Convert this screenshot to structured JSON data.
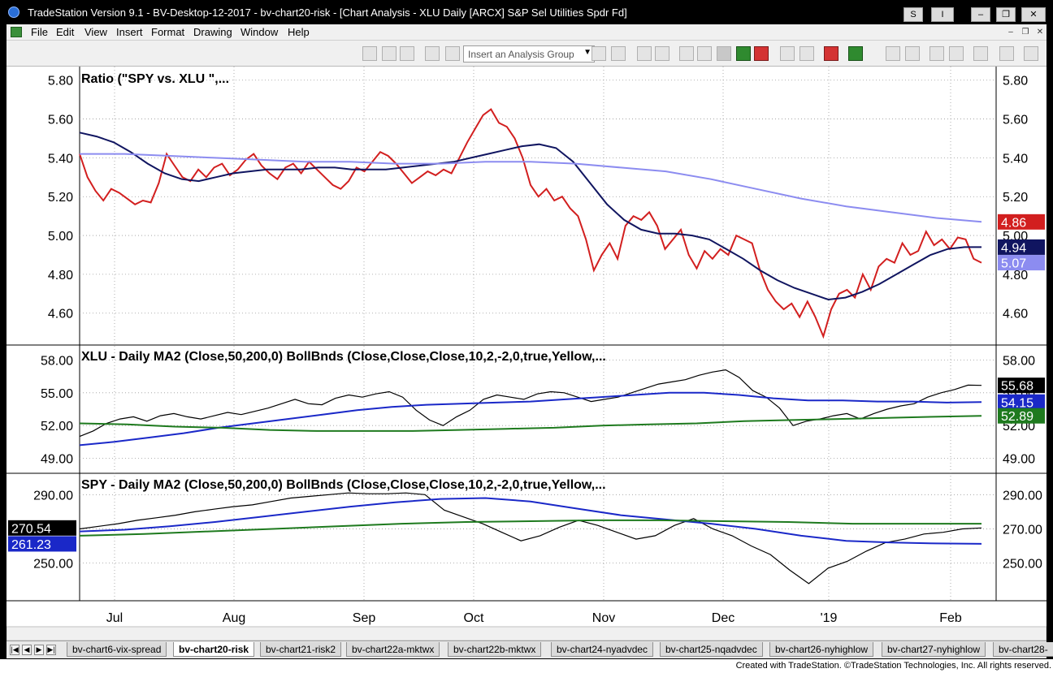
{
  "window": {
    "title": "TradeStation Version 9.1 - BV-Desktop-12-2017 - bv-chart20-risk - [Chart Analysis - XLU Daily [ARCX] S&P Sel Utilities Spdr Fd]",
    "buttons": [
      "S",
      "I",
      "–",
      "❐",
      "✕"
    ]
  },
  "menu": {
    "items": [
      "File",
      "Edit",
      "View",
      "Insert",
      "Format",
      "Drawing",
      "Window",
      "Help"
    ],
    "mdi_buttons": [
      "–",
      "❐",
      "✕"
    ]
  },
  "toolbar": {
    "analysis_group_placeholder": "Insert an Analysis Group"
  },
  "colors": {
    "ratio": "#d21f1f",
    "ma50": "#101560",
    "ma200": "#8c8cf0",
    "xlu_ma50": "#1a28c8",
    "xlu_ma200": "#1e7a1e",
    "boll_upper": "#e02020",
    "boll_lower": "#20b020"
  },
  "chart_data": [
    {
      "type": "line",
      "title": "Ratio (\"SPY vs. XLU                  \",...",
      "y_ticks": [
        "5.80",
        "5.60",
        "5.40",
        "5.20",
        "5.00",
        "4.80",
        "4.60"
      ],
      "ylim": [
        4.44,
        5.87
      ],
      "series": [
        {
          "name": "Ratio",
          "color": "#d21f1f",
          "values": [
            5.42,
            5.3,
            5.23,
            5.18,
            5.24,
            5.22,
            5.19,
            5.16,
            5.18,
            5.17,
            5.27,
            5.42,
            5.36,
            5.3,
            5.28,
            5.34,
            5.3,
            5.35,
            5.37,
            5.31,
            5.34,
            5.39,
            5.42,
            5.36,
            5.32,
            5.29,
            5.35,
            5.37,
            5.32,
            5.38,
            5.34,
            5.3,
            5.26,
            5.24,
            5.28,
            5.35,
            5.33,
            5.38,
            5.43,
            5.41,
            5.37,
            5.32,
            5.27,
            5.3,
            5.33,
            5.31,
            5.34,
            5.32,
            5.4,
            5.48,
            5.55,
            5.62,
            5.65,
            5.58,
            5.56,
            5.5,
            5.4,
            5.26,
            5.2,
            5.24,
            5.18,
            5.2,
            5.14,
            5.1,
            4.98,
            4.82,
            4.9,
            4.96,
            4.88,
            5.05,
            5.1,
            5.08,
            5.12,
            5.05,
            4.93,
            4.98,
            5.03,
            4.9,
            4.83,
            4.92,
            4.88,
            4.93,
            4.9,
            5.0,
            4.98,
            4.96,
            4.82,
            4.72,
            4.66,
            4.62,
            4.65,
            4.58,
            4.66,
            4.58,
            4.48,
            4.62,
            4.7,
            4.72,
            4.68,
            4.8,
            4.72,
            4.84,
            4.88,
            4.86,
            4.96,
            4.9,
            4.92,
            5.02,
            4.95,
            4.98,
            4.93,
            4.99,
            4.98,
            4.88,
            4.86
          ]
        },
        {
          "name": "MA 50",
          "color": "#101560",
          "values": [
            5.53,
            5.51,
            5.48,
            5.43,
            5.37,
            5.32,
            5.29,
            5.28,
            5.3,
            5.32,
            5.33,
            5.34,
            5.34,
            5.34,
            5.35,
            5.35,
            5.34,
            5.34,
            5.34,
            5.35,
            5.36,
            5.37,
            5.38,
            5.4,
            5.42,
            5.44,
            5.46,
            5.47,
            5.45,
            5.38,
            5.27,
            5.16,
            5.08,
            5.03,
            5.01,
            5.01,
            5.0,
            4.98,
            4.93,
            4.88,
            4.82,
            4.77,
            4.73,
            4.7,
            4.67,
            4.68,
            4.71,
            4.75,
            4.8,
            4.85,
            4.9,
            4.93,
            4.94,
            4.94
          ]
        },
        {
          "name": "MA 200",
          "color": "#8c8cf0",
          "values": [
            5.42,
            5.42,
            5.41,
            5.4,
            5.39,
            5.38,
            5.38,
            5.37,
            5.37,
            5.38,
            5.38,
            5.37,
            5.35,
            5.33,
            5.29,
            5.24,
            5.19,
            5.15,
            5.12,
            5.09,
            5.07
          ]
        }
      ],
      "last_values": [
        {
          "label": "5.07",
          "color": "#8c8cf0"
        },
        {
          "label": "4.94",
          "color": "#101560"
        },
        {
          "label": "4.86",
          "color": "#d21f1f"
        }
      ]
    },
    {
      "type": "line",
      "title": "XLU - Daily  MA2 (Close,50,200,0)   BollBnds (Close,Close,Close,10,2,-2,0,true,Yellow,...",
      "y_ticks": [
        "58.00",
        "55.00",
        "52.00",
        "49.00"
      ],
      "ylim": [
        47.7,
        59.3
      ],
      "series": [
        {
          "name": "Close",
          "color": "#000000",
          "values": [
            51.0,
            51.5,
            52.2,
            52.6,
            52.8,
            52.4,
            52.9,
            53.1,
            52.8,
            52.6,
            52.9,
            53.2,
            53.0,
            53.3,
            53.6,
            54.0,
            54.4,
            54.0,
            53.9,
            54.5,
            54.8,
            54.6,
            54.9,
            55.1,
            54.6,
            53.4,
            52.5,
            52.0,
            52.8,
            53.4,
            54.4,
            54.8,
            54.6,
            54.4,
            54.9,
            55.1,
            55.0,
            54.6,
            54.2,
            54.4,
            54.6,
            55.0,
            55.4,
            55.8,
            56.0,
            56.2,
            56.6,
            56.9,
            57.1,
            56.4,
            55.2,
            54.6,
            53.6,
            52.0,
            52.4,
            52.6,
            52.9,
            53.1,
            52.6,
            53.1,
            53.5,
            53.8,
            54.0,
            54.6,
            55.0,
            55.3,
            55.7,
            55.68
          ]
        },
        {
          "name": "MA 50",
          "color": "#1a28c8",
          "values": [
            50.2,
            50.5,
            50.9,
            51.3,
            51.8,
            52.2,
            52.6,
            53.0,
            53.4,
            53.7,
            53.9,
            54.0,
            54.1,
            54.2,
            54.4,
            54.6,
            54.8,
            55.0,
            55.0,
            54.8,
            54.5,
            54.3,
            54.3,
            54.2,
            54.2,
            54.1,
            54.15
          ]
        },
        {
          "name": "MA 200",
          "color": "#1e7a1e",
          "values": [
            52.2,
            52.1,
            51.9,
            51.8,
            51.6,
            51.5,
            51.5,
            51.5,
            51.6,
            51.7,
            51.8,
            52.0,
            52.1,
            52.2,
            52.4,
            52.5,
            52.6,
            52.7,
            52.8,
            52.89
          ]
        }
      ],
      "last_values": [
        {
          "label": "55.68",
          "color": "#000000"
        },
        {
          "label": "54.15",
          "color": "#1a28c8"
        },
        {
          "label": "52.89",
          "color": "#1e7a1e"
        }
      ]
    },
    {
      "type": "line",
      "title": "SPY - Daily  MA2 (Close,50,200,0)   BollBnds (Close,Close,Close,10,2,-2,0,true,Yellow,...",
      "y_ticks": [
        "290.00",
        "270.00",
        "250.00"
      ],
      "ylim": [
        228.0,
        302.0
      ],
      "series": [
        {
          "name": "Close",
          "color": "#000000",
          "values": [
            270.0,
            271.5,
            273.0,
            275.0,
            276.5,
            278.0,
            280.0,
            281.5,
            283.0,
            284.0,
            286.0,
            288.0,
            289.0,
            290.0,
            291.0,
            290.5,
            290.5,
            291.0,
            290.0,
            281.0,
            277.0,
            273.0,
            268.0,
            263.0,
            266.0,
            271.0,
            275.0,
            272.0,
            268.0,
            264.0,
            266.0,
            272.0,
            276.0,
            270.0,
            266.0,
            260.0,
            255.0,
            246.0,
            238.0,
            247.0,
            251.0,
            257.0,
            262.0,
            264.0,
            267.0,
            268.0,
            270.0,
            270.54
          ]
        },
        {
          "name": "MA 50",
          "color": "#1a28c8",
          "values": [
            268.5,
            269.5,
            271.5,
            274.0,
            277.0,
            280.0,
            283.0,
            285.5,
            287.5,
            288.0,
            286.0,
            282.0,
            278.0,
            275.5,
            273.0,
            270.0,
            266.0,
            263.0,
            262.0,
            261.5,
            261.23
          ]
        },
        {
          "name": "MA 200",
          "color": "#1e7a1e",
          "values": [
            266.0,
            267.0,
            268.5,
            270.0,
            271.5,
            273.0,
            274.0,
            274.5,
            275.0,
            275.0,
            274.5,
            274.0,
            273.0,
            273.0,
            273.0
          ]
        }
      ],
      "last_values": [
        {
          "label": "270.54",
          "color": "#000000"
        },
        {
          "label": "261.23",
          "color": "#1a28c8"
        }
      ]
    }
  ],
  "x_axis": {
    "labels": [
      "Jul",
      "Aug",
      "Sep",
      "Oct",
      "Nov",
      "Dec",
      "'19",
      "Feb"
    ]
  },
  "tabs": {
    "nav": [
      "|◀",
      "◀",
      "▶",
      "▶|"
    ],
    "items": [
      "bv-chart6-vix-spread",
      "bv-chart20-risk",
      "bv-chart21-risk2",
      "bv-chart22a-mktwx",
      "bv-chart22b-mktwx",
      "bv-chart24-nyadvdec",
      "bv-chart25-nqadvdec",
      "bv-chart26-nyhighlow",
      "bv-chart27-nyhighlow",
      "bv-chart28-"
    ],
    "active": 1
  },
  "footer": {
    "text": "Created with TradeStation. ©TradeStation Technologies, Inc. All rights reserved."
  }
}
